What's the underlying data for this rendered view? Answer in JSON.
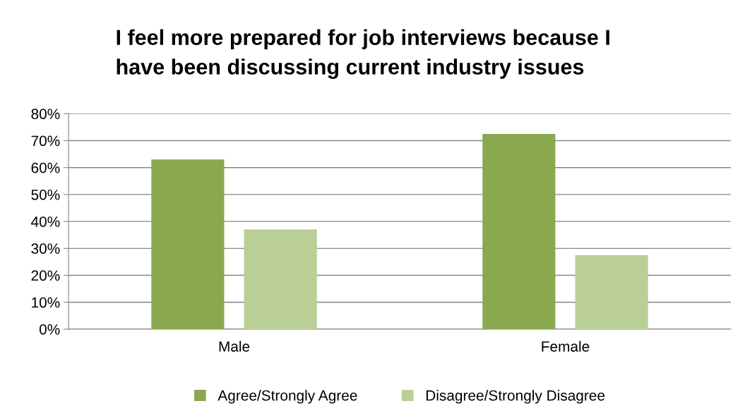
{
  "chart_data": {
    "type": "bar",
    "title": "I feel more prepared for job interviews because I\nhave been discussing current industry issues",
    "categories": [
      "Male",
      "Female"
    ],
    "series": [
      {
        "name": "Agree/Strongly Agree",
        "color": "#8aa84f",
        "values": [
          63,
          72.5
        ]
      },
      {
        "name": "Disagree/Strongly Disagree",
        "color": "#b9cf96",
        "values": [
          37,
          27.5
        ]
      }
    ],
    "ylim": [
      0,
      80
    ],
    "yticks": [
      {
        "value": 0,
        "label": "0%"
      },
      {
        "value": 10,
        "label": "10%"
      },
      {
        "value": 20,
        "label": "20%"
      },
      {
        "value": 30,
        "label": "30%"
      },
      {
        "value": 40,
        "label": "40%"
      },
      {
        "value": 50,
        "label": "50%"
      },
      {
        "value": 60,
        "label": "60%"
      },
      {
        "value": 70,
        "label": "70%"
      },
      {
        "value": 80,
        "label": "80%"
      }
    ],
    "grid": "y",
    "legend": "bottom"
  }
}
